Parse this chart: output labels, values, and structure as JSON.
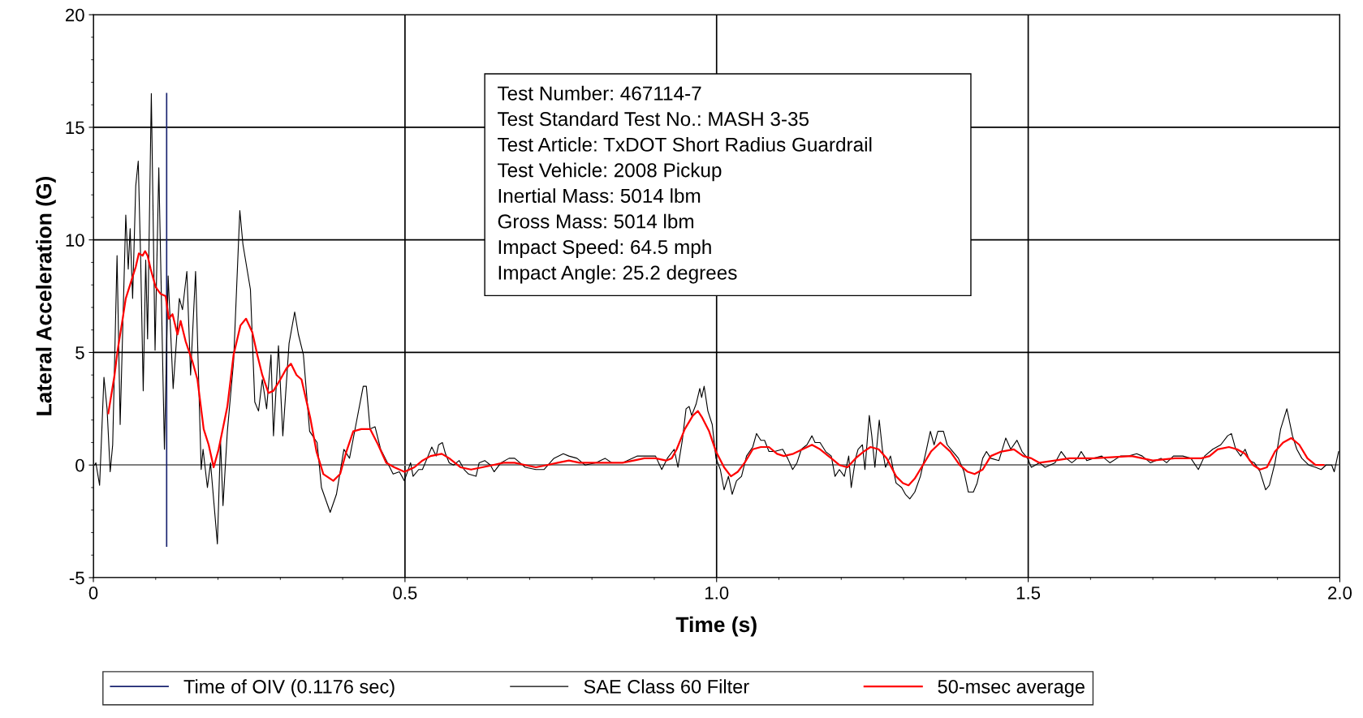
{
  "chart_data": {
    "type": "line",
    "xlabel": "Time (s)",
    "ylabel": "Lateral Acceleration (G)",
    "xlim": [
      0,
      2
    ],
    "xticks": [
      0,
      0.5,
      {
        "value": 1,
        "label": "1.0"
      },
      1.5,
      {
        "value": 2,
        "label": "2.0"
      }
    ],
    "ylim": [
      -5,
      20
    ],
    "yticks": [
      -5,
      0,
      5,
      10,
      15,
      20
    ],
    "grid": true,
    "legend": "bottom",
    "marker": "none",
    "line_style": "solid",
    "ref_lines": [
      {
        "axis": "y",
        "value": 0,
        "color": "#808080"
      }
    ],
    "annotations": [
      "Test Number: 467114-7",
      "Test Standard Test No.: MASH 3-35",
      "Test Article: TxDOT Short Radius Guardrail",
      "Test Vehicle: 2008 Pickup",
      "Inertial Mass: 5014 lbm",
      "Gross Mass: 5014 lbm",
      "Impact Speed: 64.5 mph",
      "Impact Angle: 25.2 degrees"
    ],
    "series": [
      {
        "name": "Time of OIV (0.1176 sec)",
        "color": "#1a2470",
        "x": [
          0.1176,
          0.1176
        ],
        "values": [
          -3.6,
          16.5
        ]
      },
      {
        "name": "SAE Class 60 Filter",
        "color": "#000000",
        "x": [
          0.002,
          0.004,
          0.01,
          0.017,
          0.022,
          0.027,
          0.031,
          0.038,
          0.043,
          0.052,
          0.056,
          0.059,
          0.063,
          0.068,
          0.072,
          0.076,
          0.08,
          0.084,
          0.087,
          0.093,
          0.099,
          0.105,
          0.114,
          0.12,
          0.128,
          0.138,
          0.143,
          0.15,
          0.156,
          0.164,
          0.173,
          0.176,
          0.183,
          0.188,
          0.199,
          0.204,
          0.208,
          0.215,
          0.225,
          0.235,
          0.24,
          0.252,
          0.259,
          0.265,
          0.271,
          0.278,
          0.285,
          0.289,
          0.297,
          0.304,
          0.314,
          0.323,
          0.329,
          0.337,
          0.347,
          0.359,
          0.366,
          0.38,
          0.39,
          0.402,
          0.411,
          0.422,
          0.433,
          0.438,
          0.444,
          0.452,
          0.461,
          0.481,
          0.491,
          0.499,
          0.509,
          0.513,
          0.522,
          0.528,
          0.537,
          0.543,
          0.55,
          0.554,
          0.56,
          0.565,
          0.571,
          0.578,
          0.587,
          0.595,
          0.602,
          0.614,
          0.619,
          0.628,
          0.637,
          0.643,
          0.654,
          0.667,
          0.676,
          0.693,
          0.71,
          0.723,
          0.739,
          0.754,
          0.763,
          0.776,
          0.789,
          0.806,
          0.821,
          0.832,
          0.849,
          0.873,
          0.888,
          0.902,
          0.912,
          0.921,
          0.932,
          0.938,
          0.945,
          0.951,
          0.956,
          0.96,
          0.967,
          0.973,
          0.976,
          0.98,
          0.986,
          0.993,
          0.999,
          1.006,
          1.012,
          1.019,
          1.025,
          1.032,
          1.04,
          1.048,
          1.058,
          1.064,
          1.071,
          1.077,
          1.084,
          1.093,
          1.106,
          1.114,
          1.122,
          1.129,
          1.136,
          1.145,
          1.153,
          1.158,
          1.166,
          1.175,
          1.184,
          1.19,
          1.197,
          1.205,
          1.212,
          1.216,
          1.223,
          1.227,
          1.234,
          1.238,
          1.245,
          1.249,
          1.254,
          1.261,
          1.266,
          1.271,
          1.279,
          1.288,
          1.297,
          1.303,
          1.31,
          1.318,
          1.327,
          1.336,
          1.343,
          1.349,
          1.355,
          1.364,
          1.37,
          1.379,
          1.388,
          1.397,
          1.404,
          1.412,
          1.418,
          1.427,
          1.433,
          1.44,
          1.453,
          1.464,
          1.472,
          1.482,
          1.49,
          1.499,
          1.505,
          1.518,
          1.527,
          1.543,
          1.553,
          1.561,
          1.57,
          1.579,
          1.585,
          1.594,
          1.605,
          1.618,
          1.631,
          1.648,
          1.661,
          1.674,
          1.683,
          1.696,
          1.713,
          1.722,
          1.733,
          1.748,
          1.761,
          1.773,
          1.783,
          1.796,
          1.809,
          1.82,
          1.826,
          1.833,
          1.841,
          1.848,
          1.855,
          1.863,
          1.872,
          1.881,
          1.887,
          1.896,
          1.905,
          1.915,
          1.924,
          1.931,
          1.939,
          1.95,
          1.961,
          1.97,
          1.978,
          1.987,
          1.991,
          1.998
        ],
        "values": [
          0.0,
          0.1,
          -0.9,
          3.9,
          2.5,
          -0.3,
          0.9,
          9.3,
          1.8,
          11.1,
          8.7,
          10.5,
          7.4,
          12.4,
          13.5,
          9.0,
          3.3,
          9.1,
          5.6,
          16.5,
          5.1,
          13.2,
          0.7,
          8.4,
          3.4,
          7.4,
          6.9,
          8.6,
          4.0,
          8.6,
          -0.2,
          0.7,
          -1.0,
          0.1,
          -3.5,
          1.1,
          -1.8,
          1.5,
          4.6,
          11.3,
          9.8,
          7.8,
          2.8,
          2.4,
          3.8,
          2.5,
          4.9,
          1.3,
          5.3,
          1.3,
          5.4,
          6.8,
          5.8,
          4.9,
          1.5,
          1.0,
          -1.0,
          -2.1,
          -1.3,
          0.7,
          0.3,
          1.9,
          3.5,
          3.5,
          1.6,
          1.7,
          0.7,
          -0.4,
          -0.3,
          -0.7,
          0.1,
          -0.5,
          -0.2,
          -0.2,
          0.4,
          0.8,
          0.4,
          0.9,
          1.0,
          0.5,
          0.1,
          0.0,
          0.2,
          -0.2,
          -0.4,
          -0.5,
          0.1,
          0.2,
          0.0,
          -0.3,
          0.1,
          0.3,
          0.3,
          -0.1,
          -0.2,
          -0.2,
          0.3,
          0.5,
          0.4,
          0.3,
          0.0,
          0.1,
          0.3,
          0.1,
          0.1,
          0.4,
          0.4,
          0.4,
          -0.2,
          0.3,
          0.7,
          -0.1,
          1.1,
          2.5,
          2.6,
          2.2,
          2.7,
          3.4,
          3.0,
          3.5,
          2.4,
          1.8,
          0.3,
          -0.2,
          -1.1,
          -0.5,
          -1.3,
          -0.7,
          -0.5,
          0.4,
          0.8,
          1.4,
          1.1,
          1.1,
          0.6,
          0.6,
          0.7,
          0.3,
          -0.2,
          0.1,
          0.7,
          0.9,
          1.3,
          1.0,
          1.0,
          0.6,
          0.4,
          -0.5,
          -0.2,
          -0.5,
          0.4,
          -1.0,
          0.3,
          0.7,
          0.9,
          -0.2,
          2.2,
          1.3,
          -0.1,
          2.0,
          0.7,
          -0.1,
          0.4,
          -0.8,
          -1.0,
          -1.3,
          -1.5,
          -1.2,
          -0.5,
          0.6,
          1.5,
          0.9,
          1.5,
          1.5,
          0.9,
          0.6,
          0.3,
          -0.3,
          -1.2,
          -1.2,
          -0.8,
          0.3,
          0.6,
          0.3,
          0.2,
          1.2,
          0.7,
          1.1,
          0.6,
          0.3,
          -0.1,
          0.1,
          -0.1,
          0.1,
          0.6,
          0.3,
          0.1,
          0.3,
          0.6,
          0.2,
          0.3,
          0.4,
          0.1,
          0.4,
          0.4,
          0.5,
          0.4,
          0.1,
          0.3,
          0.1,
          0.4,
          0.4,
          0.3,
          -0.2,
          0.4,
          0.7,
          0.9,
          1.3,
          1.4,
          0.7,
          0.4,
          0.7,
          0.2,
          0.1,
          -0.3,
          -1.1,
          -0.9,
          0.1,
          1.6,
          2.5,
          1.3,
          0.7,
          0.3,
          0.0,
          -0.1,
          -0.2,
          0.0,
          0.0,
          -0.3,
          0.6
        ]
      },
      {
        "name": "50-msec average",
        "color": "#ff0000",
        "x": [
          0.024,
          0.034,
          0.039,
          0.047,
          0.052,
          0.06,
          0.068,
          0.073,
          0.079,
          0.083,
          0.087,
          0.092,
          0.1,
          0.108,
          0.116,
          0.121,
          0.127,
          0.135,
          0.14,
          0.148,
          0.159,
          0.167,
          0.177,
          0.185,
          0.193,
          0.201,
          0.215,
          0.225,
          0.236,
          0.245,
          0.255,
          0.263,
          0.271,
          0.281,
          0.289,
          0.3,
          0.31,
          0.317,
          0.326,
          0.334,
          0.348,
          0.358,
          0.369,
          0.385,
          0.396,
          0.406,
          0.417,
          0.43,
          0.444,
          0.457,
          0.47,
          0.483,
          0.499,
          0.515,
          0.528,
          0.541,
          0.559,
          0.571,
          0.589,
          0.606,
          0.624,
          0.641,
          0.658,
          0.676,
          0.693,
          0.71,
          0.728,
          0.745,
          0.763,
          0.78,
          0.797,
          0.815,
          0.832,
          0.849,
          0.867,
          0.884,
          0.902,
          0.919,
          0.928,
          0.936,
          0.949,
          0.962,
          0.97,
          0.977,
          0.988,
          0.999,
          1.012,
          1.023,
          1.034,
          1.045,
          1.058,
          1.071,
          1.084,
          1.097,
          1.108,
          1.123,
          1.138,
          1.153,
          1.166,
          1.184,
          1.197,
          1.21,
          1.223,
          1.236,
          1.247,
          1.26,
          1.273,
          1.288,
          1.299,
          1.308,
          1.318,
          1.331,
          1.344,
          1.359,
          1.375,
          1.39,
          1.403,
          1.414,
          1.427,
          1.44,
          1.457,
          1.477,
          1.492,
          1.505,
          1.518,
          1.543,
          1.566,
          1.605,
          1.666,
          1.7,
          1.735,
          1.778,
          1.791,
          1.804,
          1.822,
          1.835,
          1.848,
          1.861,
          1.872,
          1.883,
          1.896,
          1.909,
          1.922,
          1.935,
          1.948,
          1.961,
          1.974
        ],
        "values": [
          2.3,
          4.0,
          5.1,
          6.5,
          7.4,
          8.1,
          8.8,
          9.4,
          9.3,
          9.5,
          9.3,
          8.7,
          7.9,
          7.6,
          7.5,
          6.5,
          6.7,
          5.8,
          6.4,
          5.5,
          4.6,
          3.8,
          1.6,
          0.9,
          -0.1,
          0.7,
          2.6,
          4.9,
          6.2,
          6.5,
          5.9,
          4.9,
          4.0,
          3.2,
          3.3,
          3.8,
          4.3,
          4.5,
          4.0,
          3.8,
          2.1,
          0.6,
          -0.4,
          -0.7,
          -0.4,
          0.6,
          1.5,
          1.6,
          1.6,
          0.9,
          0.1,
          -0.1,
          -0.3,
          -0.1,
          0.2,
          0.4,
          0.5,
          0.3,
          -0.1,
          -0.2,
          -0.1,
          0.0,
          0.1,
          0.1,
          0.0,
          -0.1,
          0.0,
          0.1,
          0.2,
          0.1,
          0.1,
          0.1,
          0.1,
          0.1,
          0.2,
          0.3,
          0.3,
          0.2,
          0.3,
          0.7,
          1.6,
          2.2,
          2.4,
          2.1,
          1.5,
          0.6,
          -0.1,
          -0.5,
          -0.3,
          0.1,
          0.7,
          0.8,
          0.8,
          0.5,
          0.4,
          0.5,
          0.7,
          0.9,
          0.7,
          0.3,
          0.0,
          -0.1,
          0.3,
          0.6,
          0.8,
          0.7,
          0.3,
          -0.5,
          -0.8,
          -0.9,
          -0.6,
          0.0,
          0.6,
          1.0,
          0.6,
          0.0,
          -0.3,
          -0.4,
          -0.2,
          0.4,
          0.6,
          0.7,
          0.4,
          0.3,
          0.1,
          0.2,
          0.3,
          0.3,
          0.4,
          0.2,
          0.3,
          0.3,
          0.4,
          0.7,
          0.8,
          0.7,
          0.5,
          0.0,
          -0.2,
          -0.1,
          0.6,
          1.0,
          1.2,
          0.9,
          0.3,
          0.0,
          0.0
        ]
      }
    ]
  }
}
